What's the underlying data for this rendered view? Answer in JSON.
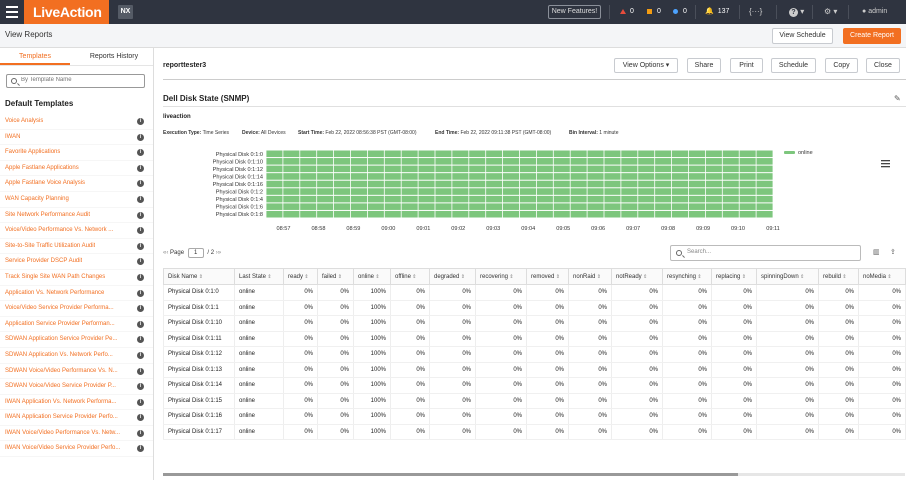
{
  "topbar": {
    "logo": "LiveAction",
    "badge": "NX",
    "new_features": "New Features!",
    "alerts": [
      {
        "color": "#e74c3c",
        "count": "0"
      },
      {
        "color": "#f39c12",
        "count": "0"
      },
      {
        "color": "#4da3ff",
        "count": "0"
      }
    ],
    "bell_count": "137",
    "code_icon": "{···}",
    "help_icon": "?",
    "gear_icon": "⚙",
    "user": "admin"
  },
  "subheader": {
    "title": "View Reports",
    "view_schedule": "View Schedule",
    "create_report": "Create Report"
  },
  "sidebar": {
    "tabs": [
      "Templates",
      "Reports History"
    ],
    "search_placeholder": "By Template Name",
    "heading": "Default Templates",
    "items": [
      "Voice Analysis",
      "IWAN",
      "Favorite Applications",
      "Apple Fastlane Applications",
      "Apple Fastlane Voice Analysis",
      "WAN Capacity Planning",
      "Site Network Performance Audit",
      "Voice/Video Performance Vs. Network ...",
      "Site-to-Site Traffic Utilization Audit",
      "Service Provider DSCP Audit",
      "Track Single Site WAN Path Changes",
      "Application Vs. Network Performance",
      "Voice/Video Service Provider Performa...",
      "Application Service Provider Performan...",
      "SDWAN Application Service Provider Pe...",
      "SDWAN Application Vs. Network Perfo...",
      "SDWAN Voice/Video Performance Vs. N...",
      "SDWAN Voice/Video Service Provider P...",
      "IWAN Application Vs. Network Performa...",
      "IWAN Application Service Provider Perfo...",
      "IWAN Voice/Video Performance Vs. Netw...",
      "IWAN Voice/Video Service Provider Perfo..."
    ]
  },
  "report": {
    "name": "reporttester3",
    "buttons": [
      "View Options",
      "Share",
      "Print",
      "Schedule",
      "Copy",
      "Close"
    ],
    "widget_title": "Dell Disk State (SNMP)",
    "device_name": "liveaction",
    "meta": {
      "exec_label": "Execution Type:",
      "exec_value": "Time Series",
      "device_label": "Device:",
      "device_value": "All Devices",
      "start_label": "Start Time:",
      "start_value": "Feb 22, 2022 08:56:38 PST (GMT-08:00)",
      "end_label": "End Time:",
      "end_value": "Feb 22, 2022 09:11:38 PST (GMT-08:00)",
      "bin_label": "Bin Interval:",
      "bin_value": "1 minute"
    },
    "pager": {
      "prev": "«‹",
      "page_label": "Page",
      "page": "1",
      "total": "/ 2",
      "next": "›»"
    },
    "table_search_placeholder": "Search..."
  },
  "chart_data": {
    "type": "heatmap",
    "y_categories": [
      "Physical Disk 0:1:0",
      "Physical Disk 0:1:10",
      "Physical Disk 0:1:12",
      "Physical Disk 0:1:14",
      "Physical Disk 0:1:16",
      "Physical Disk 0:1:2",
      "Physical Disk 0:1:4",
      "Physical Disk 0:1:6",
      "Physical Disk 0:1:8"
    ],
    "x_ticks": [
      "08:57",
      "08:58",
      "08:59",
      "09:00",
      "09:01",
      "09:02",
      "09:03",
      "09:04",
      "09:05",
      "09:06",
      "09:07",
      "09:08",
      "09:09",
      "09:10",
      "09:11"
    ],
    "state": "online",
    "legend": [
      {
        "name": "online",
        "color": "#7dc67d"
      }
    ],
    "legend_position": "top-right"
  },
  "table": {
    "columns": [
      "Disk Name",
      "Last State",
      "ready",
      "failed",
      "online",
      "offline",
      "degraded",
      "recovering",
      "removed",
      "nonRaid",
      "notReady",
      "resynching",
      "replacing",
      "spinningDown",
      "rebuild",
      "noMedia"
    ],
    "rows": [
      [
        "Physical Disk 0:1:0",
        "online",
        "0%",
        "0%",
        "100%",
        "0%",
        "0%",
        "0%",
        "0%",
        "0%",
        "0%",
        "0%",
        "0%",
        "0%",
        "0%",
        "0%"
      ],
      [
        "Physical Disk 0:1:1",
        "online",
        "0%",
        "0%",
        "100%",
        "0%",
        "0%",
        "0%",
        "0%",
        "0%",
        "0%",
        "0%",
        "0%",
        "0%",
        "0%",
        "0%"
      ],
      [
        "Physical Disk 0:1:10",
        "online",
        "0%",
        "0%",
        "100%",
        "0%",
        "0%",
        "0%",
        "0%",
        "0%",
        "0%",
        "0%",
        "0%",
        "0%",
        "0%",
        "0%"
      ],
      [
        "Physical Disk 0:1:11",
        "online",
        "0%",
        "0%",
        "100%",
        "0%",
        "0%",
        "0%",
        "0%",
        "0%",
        "0%",
        "0%",
        "0%",
        "0%",
        "0%",
        "0%"
      ],
      [
        "Physical Disk 0:1:12",
        "online",
        "0%",
        "0%",
        "100%",
        "0%",
        "0%",
        "0%",
        "0%",
        "0%",
        "0%",
        "0%",
        "0%",
        "0%",
        "0%",
        "0%"
      ],
      [
        "Physical Disk 0:1:13",
        "online",
        "0%",
        "0%",
        "100%",
        "0%",
        "0%",
        "0%",
        "0%",
        "0%",
        "0%",
        "0%",
        "0%",
        "0%",
        "0%",
        "0%"
      ],
      [
        "Physical Disk 0:1:14",
        "online",
        "0%",
        "0%",
        "100%",
        "0%",
        "0%",
        "0%",
        "0%",
        "0%",
        "0%",
        "0%",
        "0%",
        "0%",
        "0%",
        "0%"
      ],
      [
        "Physical Disk 0:1:15",
        "online",
        "0%",
        "0%",
        "100%",
        "0%",
        "0%",
        "0%",
        "0%",
        "0%",
        "0%",
        "0%",
        "0%",
        "0%",
        "0%",
        "0%"
      ],
      [
        "Physical Disk 0:1:16",
        "online",
        "0%",
        "0%",
        "100%",
        "0%",
        "0%",
        "0%",
        "0%",
        "0%",
        "0%",
        "0%",
        "0%",
        "0%",
        "0%",
        "0%"
      ],
      [
        "Physical Disk 0:1:17",
        "online",
        "0%",
        "0%",
        "100%",
        "0%",
        "0%",
        "0%",
        "0%",
        "0%",
        "0%",
        "0%",
        "0%",
        "0%",
        "0%",
        "0%"
      ]
    ]
  }
}
